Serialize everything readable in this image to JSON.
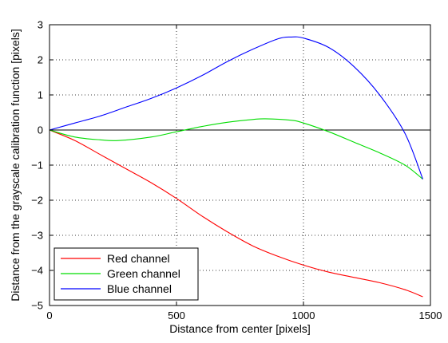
{
  "chart_data": {
    "type": "line",
    "title": "",
    "xlabel": "Distance from center [pixels]",
    "ylabel": "Distance from the grayscale calibration function [pixels]",
    "xlim": [
      0,
      1500
    ],
    "ylim": [
      -5,
      3
    ],
    "xticks": [
      0,
      500,
      1000,
      1500
    ],
    "yticks": [
      3,
      2,
      1,
      0,
      -1,
      -2,
      -3,
      -4,
      -5
    ],
    "grid": true,
    "legend_position": "bottom-left",
    "reference_line": {
      "y": 0,
      "color": "#000000"
    },
    "series": [
      {
        "name": "Red channel",
        "color": "#ff0000",
        "x": [
          0,
          100,
          200,
          300,
          400,
          500,
          600,
          700,
          800,
          900,
          1000,
          1100,
          1200,
          1300,
          1400,
          1470
        ],
        "y": [
          0,
          -0.3,
          -0.7,
          -1.1,
          -1.5,
          -1.95,
          -2.45,
          -2.9,
          -3.3,
          -3.6,
          -3.85,
          -4.05,
          -4.2,
          -4.35,
          -4.55,
          -4.75
        ]
      },
      {
        "name": "Green channel",
        "color": "#00dd00",
        "x": [
          0,
          100,
          200,
          270,
          400,
          500,
          600,
          700,
          800,
          850,
          950,
          1000,
          1100,
          1200,
          1300,
          1400,
          1470
        ],
        "y": [
          0,
          -0.2,
          -0.28,
          -0.3,
          -0.2,
          -0.05,
          0.1,
          0.22,
          0.3,
          0.32,
          0.28,
          0.2,
          -0.05,
          -0.35,
          -0.65,
          -1.0,
          -1.4
        ]
      },
      {
        "name": "Blue channel",
        "color": "#0000ff",
        "x": [
          0,
          100,
          200,
          300,
          400,
          500,
          600,
          700,
          800,
          900,
          950,
          1000,
          1100,
          1200,
          1300,
          1400,
          1470
        ],
        "y": [
          0,
          0.2,
          0.4,
          0.65,
          0.9,
          1.2,
          1.55,
          1.95,
          2.3,
          2.6,
          2.65,
          2.62,
          2.35,
          1.8,
          1.0,
          -0.1,
          -1.4
        ]
      }
    ]
  }
}
